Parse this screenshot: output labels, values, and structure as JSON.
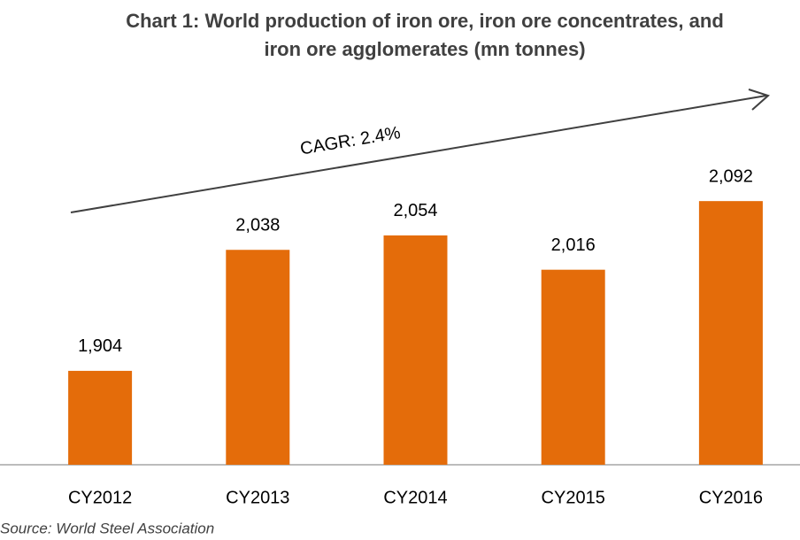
{
  "chart_data": {
    "type": "bar",
    "title": "Chart 1: World production of iron ore, iron ore concentrates, and iron ore agglomerates (mn tonnes)",
    "categories": [
      "CY2012",
      "CY2013",
      "CY2014",
      "CY2015",
      "CY2016"
    ],
    "values": [
      1904,
      2038,
      2054,
      2016,
      2092
    ],
    "value_labels": [
      "1,904",
      "2,038",
      "2,054",
      "2,016",
      "2,092"
    ],
    "color": "#e46c0a",
    "ylim": [
      1800,
      2100
    ],
    "annotation": "CAGR: 2.4%",
    "source": "Source: World Steel Association"
  }
}
